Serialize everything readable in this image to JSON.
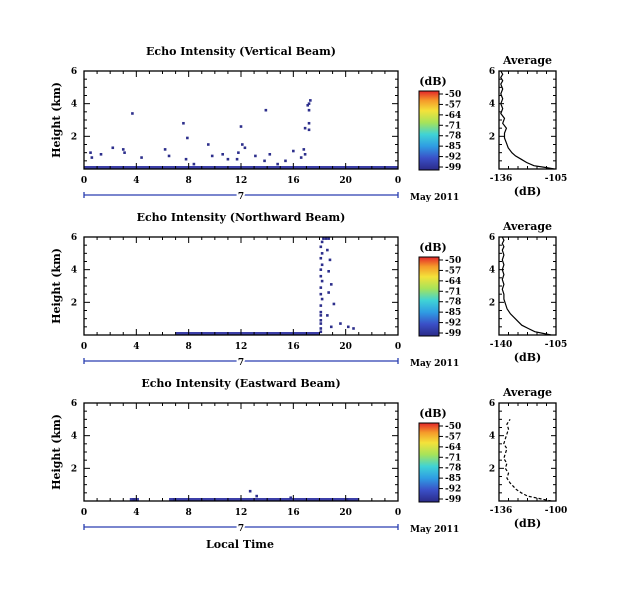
{
  "figure": {
    "month_label": "May 2011",
    "day_label": "7",
    "xlabel": "Local Time"
  },
  "chart_data": [
    {
      "type": "heatmap",
      "title": "Echo Intensity (Vertical Beam)",
      "ylabel": "Height (km)",
      "xlim": [
        0,
        24
      ],
      "ylim": [
        0,
        6
      ],
      "xticks": [
        "0",
        "4",
        "8",
        "12",
        "16",
        "20",
        "0"
      ],
      "yticks": [
        "2",
        "4",
        "6"
      ],
      "colorbar": {
        "unit": "(dB)",
        "ticks": [
          "-50",
          "-57",
          "-64",
          "-71",
          "-78",
          "-85",
          "-92",
          "-99"
        ]
      },
      "cells": [
        [
          0.5,
          1.0
        ],
        [
          0.6,
          0.7
        ],
        [
          1.3,
          0.9
        ],
        [
          2.2,
          1.3
        ],
        [
          3.0,
          1.2
        ],
        [
          3.1,
          1.0
        ],
        [
          3.7,
          3.4
        ],
        [
          4.4,
          0.7
        ],
        [
          6.2,
          1.2
        ],
        [
          6.5,
          0.8
        ],
        [
          7.6,
          2.8
        ],
        [
          7.8,
          0.6
        ],
        [
          7.9,
          1.9
        ],
        [
          8.4,
          0.3
        ],
        [
          9.5,
          1.5
        ],
        [
          9.8,
          0.8
        ],
        [
          10.6,
          0.9
        ],
        [
          11.0,
          0.6
        ],
        [
          11.7,
          0.6
        ],
        [
          11.8,
          1.0
        ],
        [
          12.0,
          2.6
        ],
        [
          12.1,
          1.5
        ],
        [
          12.3,
          1.3
        ],
        [
          13.1,
          0.8
        ],
        [
          13.8,
          0.5
        ],
        [
          13.9,
          3.6
        ],
        [
          14.2,
          0.9
        ],
        [
          14.8,
          0.3
        ],
        [
          15.4,
          0.5
        ],
        [
          16.0,
          1.1
        ],
        [
          16.6,
          0.7
        ],
        [
          16.8,
          1.2
        ],
        [
          16.9,
          2.5
        ],
        [
          16.9,
          0.9
        ],
        [
          17.2,
          2.4
        ],
        [
          17.2,
          2.8
        ],
        [
          17.1,
          3.9
        ],
        [
          17.2,
          3.6
        ],
        [
          17.2,
          4.0
        ],
        [
          17.3,
          4.2
        ]
      ],
      "baseline": [
        [
          0,
          24
        ]
      ]
    },
    {
      "type": "line",
      "title": "Average",
      "xlabel": "(dB)",
      "xlim": [
        -136,
        -105
      ],
      "xticks": [
        "-136",
        "-105"
      ],
      "ylim": [
        0,
        6
      ],
      "yticks": [
        "2",
        "4",
        "6"
      ],
      "x": [
        -106,
        -111,
        -117,
        -121,
        -124,
        -127,
        -129,
        -131,
        -132,
        -133,
        -133,
        -132,
        -134,
        -133,
        -135,
        -134,
        -135,
        -134,
        -135,
        -134,
        -135,
        -134,
        -135,
        -134,
        -135
      ],
      "y": [
        0,
        0.1,
        0.2,
        0.4,
        0.6,
        0.8,
        1.0,
        1.3,
        1.6,
        1.9,
        2.2,
        2.5,
        2.8,
        3.1,
        3.4,
        3.7,
        4.0,
        4.3,
        4.6,
        4.9,
        5.2,
        5.4,
        5.6,
        5.8,
        6.0
      ]
    },
    {
      "type": "heatmap",
      "title": "Echo Intensity (Northward Beam)",
      "ylabel": "Height (km)",
      "xlim": [
        0,
        24
      ],
      "ylim": [
        0,
        6
      ],
      "xticks": [
        "0",
        "4",
        "8",
        "12",
        "16",
        "20",
        "0"
      ],
      "yticks": [
        "2",
        "4",
        "6"
      ],
      "colorbar": {
        "unit": "(dB)",
        "ticks": [
          "-50",
          "-57",
          "-64",
          "-71",
          "-78",
          "-85",
          "-92",
          "-99"
        ]
      },
      "cells": [
        [
          18.1,
          0.2
        ],
        [
          18.1,
          0.4
        ],
        [
          18.1,
          0.7
        ],
        [
          18.1,
          0.9
        ],
        [
          18.1,
          1.2
        ],
        [
          18.1,
          1.4
        ],
        [
          18.1,
          1.8
        ],
        [
          18.2,
          2.2
        ],
        [
          18.1,
          2.5
        ],
        [
          18.1,
          2.9
        ],
        [
          18.2,
          3.3
        ],
        [
          18.1,
          3.6
        ],
        [
          18.1,
          4.0
        ],
        [
          18.2,
          4.3
        ],
        [
          18.1,
          4.7
        ],
        [
          18.2,
          5.0
        ],
        [
          18.1,
          5.4
        ],
        [
          18.2,
          5.7
        ],
        [
          18.3,
          5.9
        ],
        [
          18.5,
          5.9
        ],
        [
          18.7,
          5.9
        ],
        [
          18.6,
          5.2
        ],
        [
          18.8,
          4.6
        ],
        [
          18.7,
          3.9
        ],
        [
          18.9,
          3.1
        ],
        [
          18.7,
          2.6
        ],
        [
          19.1,
          1.9
        ],
        [
          18.6,
          1.2
        ],
        [
          19.6,
          0.7
        ],
        [
          20.6,
          0.4
        ],
        [
          20.2,
          0.5
        ],
        [
          18.9,
          0.5
        ]
      ],
      "baseline": [
        [
          7,
          18
        ]
      ]
    },
    {
      "type": "line",
      "title": "Average",
      "xlabel": "(dB)",
      "xlim": [
        -140,
        -105
      ],
      "xticks": [
        "-140",
        "-105"
      ],
      "ylim": [
        0,
        6
      ],
      "yticks": [
        "2",
        "4",
        "6"
      ],
      "x": [
        -108,
        -113,
        -118,
        -122,
        -126,
        -128,
        -130,
        -133,
        -135,
        -136,
        -137,
        -137,
        -138,
        -137,
        -138,
        -137,
        -138,
        -137,
        -138,
        -137,
        -138,
        -137,
        -138,
        -137,
        -138
      ],
      "y": [
        0,
        0.1,
        0.2,
        0.4,
        0.6,
        0.8,
        1.0,
        1.3,
        1.6,
        1.9,
        2.2,
        2.5,
        2.8,
        3.1,
        3.4,
        3.7,
        4.0,
        4.3,
        4.6,
        4.9,
        5.2,
        5.4,
        5.6,
        5.8,
        6.0
      ]
    },
    {
      "type": "heatmap",
      "title": "Echo Intensity (Eastward Beam)",
      "ylabel": "Height (km)",
      "xlim": [
        0,
        24
      ],
      "ylim": [
        0,
        6
      ],
      "xticks": [
        "0",
        "4",
        "8",
        "12",
        "16",
        "20",
        "0"
      ],
      "yticks": [
        "2",
        "4",
        "6"
      ],
      "colorbar": {
        "unit": "(dB)",
        "ticks": [
          "-50",
          "-57",
          "-64",
          "-71",
          "-78",
          "-85",
          "-92",
          "-99"
        ]
      },
      "cells": [
        [
          3.8,
          0.1
        ],
        [
          6.9,
          0.1
        ],
        [
          12.7,
          0.6
        ],
        [
          13.2,
          0.3
        ],
        [
          15.8,
          0.2
        ],
        [
          20.1,
          0.1
        ]
      ],
      "baseline": [
        [
          3.5,
          4.2
        ],
        [
          6.5,
          21
        ]
      ]
    },
    {
      "type": "line",
      "title": "Average",
      "xlabel": "(dB)",
      "xlim": [
        -136,
        -100
      ],
      "xticks": [
        "-136",
        "-100"
      ],
      "ylim": [
        0,
        6
      ],
      "yticks": [
        "2",
        "4",
        "6"
      ],
      "x": [
        -103,
        -108,
        -113,
        -118,
        -122,
        -125,
        -127,
        -129,
        -131,
        -130,
        -132,
        -131,
        -133,
        -132,
        -131,
        -133,
        -132,
        -131,
        -130,
        -131,
        -129
      ],
      "y": [
        0,
        0.1,
        0.2,
        0.3,
        0.5,
        0.7,
        0.9,
        1.1,
        1.4,
        1.7,
        2.0,
        2.3,
        2.6,
        2.9,
        3.2,
        3.5,
        3.8,
        4.1,
        4.4,
        4.7,
        5.0
      ]
    }
  ]
}
